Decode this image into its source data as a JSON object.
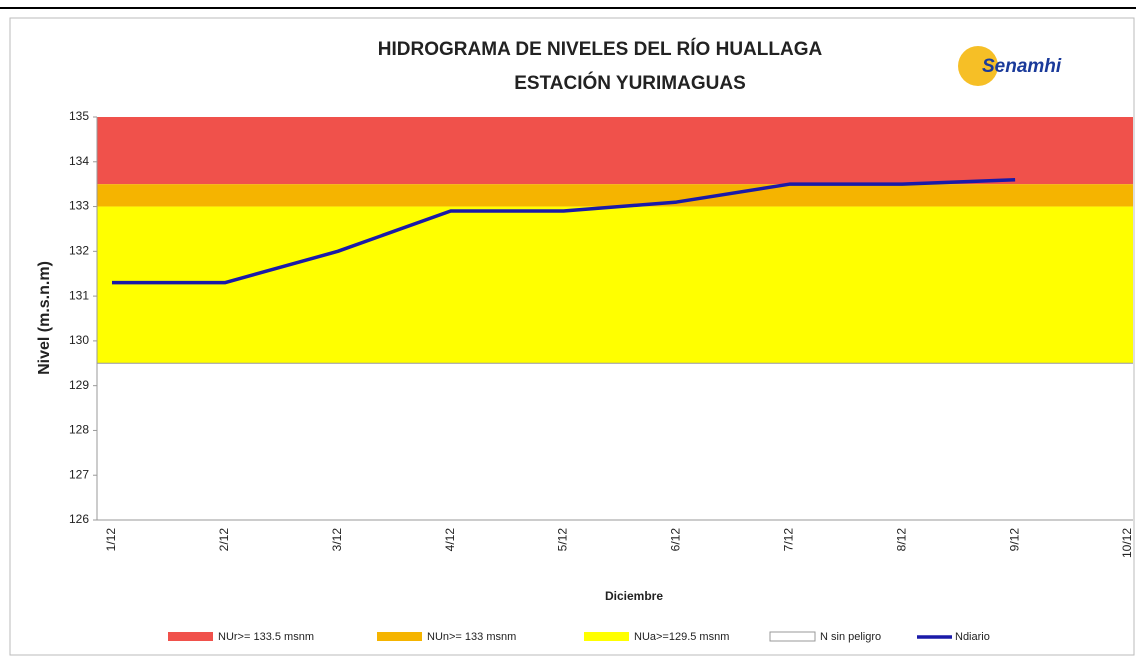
{
  "chart_data": {
    "type": "line",
    "title": "HIDROGRAMA DE NIVELES DEL RÍO HUALLAGA",
    "subtitle": "ESTACIÓN YURIMAGUAS",
    "logo": "Senamhi",
    "ylabel": "Nivel (m.s.n.m)",
    "xlabel": "Diciembre",
    "categories": [
      "1/12",
      "2/12",
      "3/12",
      "4/12",
      "5/12",
      "6/12",
      "7/12",
      "8/12",
      "9/12",
      "10/12"
    ],
    "bands": [
      {
        "name": "NUr>= 133.5 msnm",
        "color": "#f0514b",
        "from": 133.5,
        "to": 135
      },
      {
        "name": "NUn>= 133 msnm",
        "color": "#f5b400",
        "from": 133,
        "to": 133.5
      },
      {
        "name": "NUa>=129.5 msnm",
        "color": "#ffff00",
        "from": 129.5,
        "to": 133
      },
      {
        "name": "N sin peligro",
        "color": "#ffffff",
        "from": 126,
        "to": 129.5
      }
    ],
    "series": [
      {
        "name": "Ndiario",
        "color": "#1a1aa8",
        "values": [
          131.3,
          131.3,
          132.0,
          132.9,
          132.9,
          133.1,
          133.5,
          133.5,
          133.6,
          null
        ]
      }
    ],
    "ylim": [
      126,
      135
    ],
    "yticks": [
      126,
      127,
      128,
      129,
      130,
      131,
      132,
      133,
      134,
      135
    ]
  }
}
